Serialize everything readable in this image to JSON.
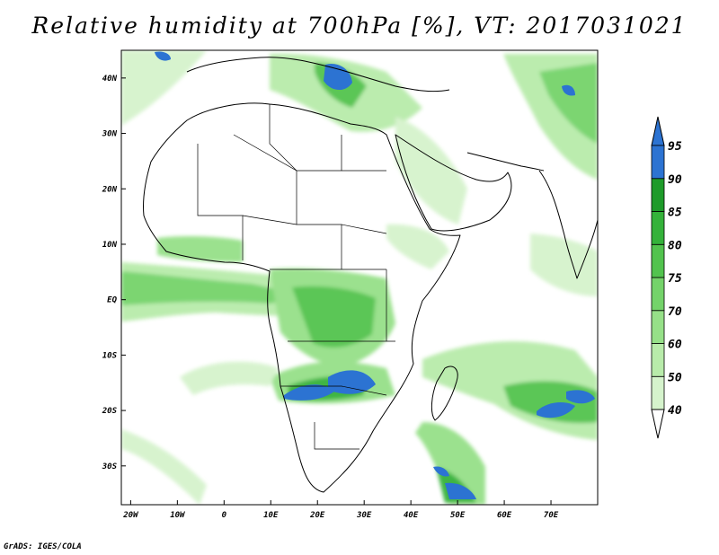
{
  "header": {
    "title": "Relative humidity at 700hPa [%], VT: 2017031021"
  },
  "footer": {
    "credit": "GrADS: IGES/COLA"
  },
  "map": {
    "lon_range": [
      -22,
      80
    ],
    "lat_range": [
      -37,
      45
    ],
    "lon_ticks": [
      {
        "value": -20,
        "label": "20W"
      },
      {
        "value": -10,
        "label": "10W"
      },
      {
        "value": 0,
        "label": "0"
      },
      {
        "value": 10,
        "label": "10E"
      },
      {
        "value": 20,
        "label": "20E"
      },
      {
        "value": 30,
        "label": "30E"
      },
      {
        "value": 40,
        "label": "40E"
      },
      {
        "value": 50,
        "label": "50E"
      },
      {
        "value": 60,
        "label": "60E"
      },
      {
        "value": 70,
        "label": "70E"
      }
    ],
    "lat_ticks": [
      {
        "value": 40,
        "label": "40N"
      },
      {
        "value": 30,
        "label": "30N"
      },
      {
        "value": 20,
        "label": "20N"
      },
      {
        "value": 10,
        "label": "10N"
      },
      {
        "value": 0,
        "label": "EQ"
      },
      {
        "value": -10,
        "label": "10S"
      },
      {
        "value": -20,
        "label": "20S"
      },
      {
        "value": -30,
        "label": "30S"
      }
    ]
  },
  "colorbar": {
    "levels": [
      "40",
      "50",
      "60",
      "70",
      "75",
      "80",
      "85",
      "90",
      "95"
    ],
    "colors": [
      "#eefbe9",
      "#d5f3cc",
      "#b8ebaa",
      "#96e088",
      "#74d36a",
      "#52c34e",
      "#34b23a",
      "#1e9b2a",
      "#2c73d2"
    ],
    "extension_colors": {
      "below": "#ffffff",
      "above": "#2c73d2"
    }
  }
}
